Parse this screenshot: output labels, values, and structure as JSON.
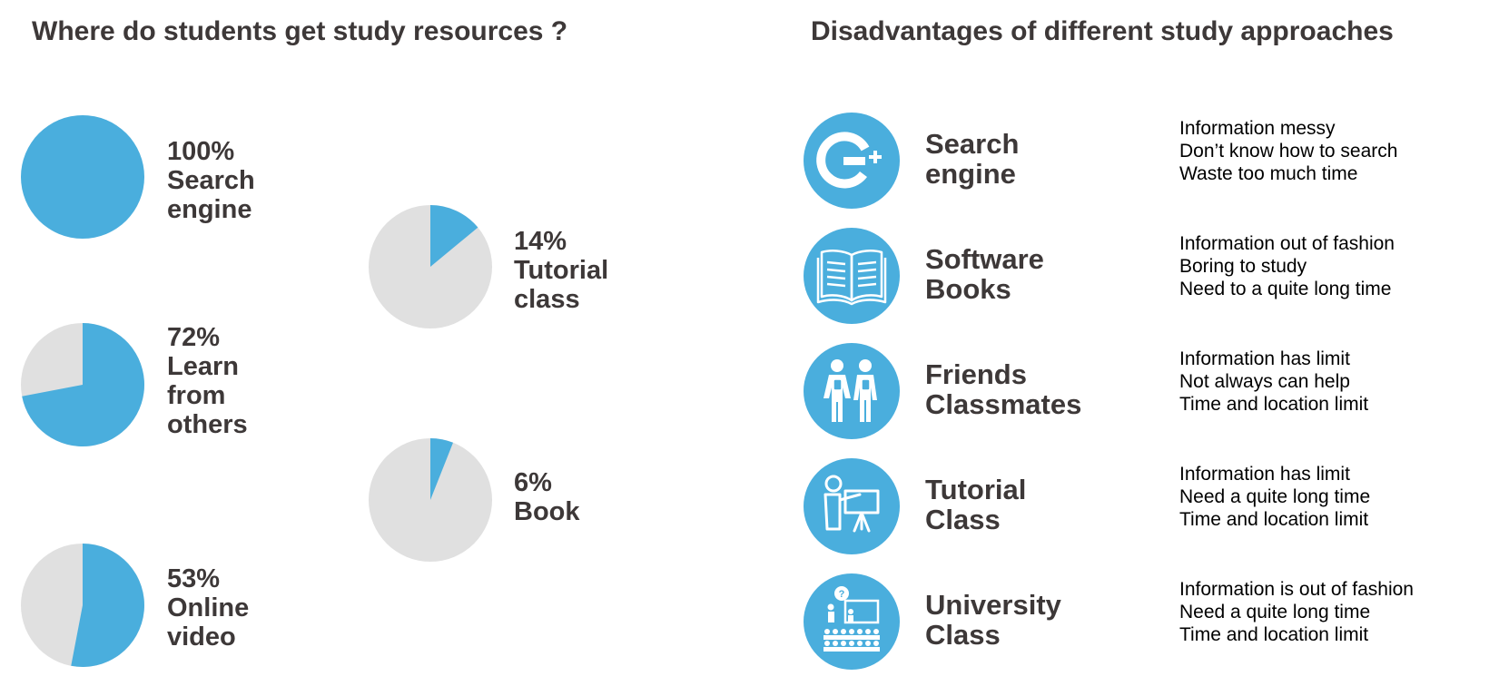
{
  "left_title": "Where do students get study resources ?",
  "right_title": "Disadvantages of different study approaches",
  "colors": {
    "accent": "#4aaedd",
    "remainder": "#e0e0e0",
    "text": "#3d3838"
  },
  "chart_data": {
    "type": "pie",
    "title": "Where do students get study resources ?",
    "pies": [
      {
        "percent_label": "100%",
        "label_lines": [
          "Search",
          "engine"
        ],
        "value": 100
      },
      {
        "percent_label": "72%",
        "label_lines": [
          "Learn",
          "from",
          "others"
        ],
        "value": 72
      },
      {
        "percent_label": "53%",
        "label_lines": [
          "Online",
          "video"
        ],
        "value": 53
      },
      {
        "percent_label": "14%",
        "label_lines": [
          "Tutorial",
          "class"
        ],
        "value": 14
      },
      {
        "percent_label": "6%",
        "label_lines": [
          "Book"
        ],
        "value": 6
      }
    ]
  },
  "approaches": [
    {
      "name_lines": [
        "Search",
        "engine"
      ],
      "icon": "google-plus-icon",
      "cons": [
        "Information messy",
        "Don’t know how to search",
        "Waste too much time"
      ]
    },
    {
      "name_lines": [
        "Software",
        "Books"
      ],
      "icon": "open-book-icon",
      "cons": [
        "Information out of fashion",
        "Boring to study",
        "Need to a quite long time"
      ]
    },
    {
      "name_lines": [
        "Friends",
        "Classmates"
      ],
      "icon": "students-icon",
      "cons": [
        "Information has limit",
        "Not always can help",
        "Time and location limit"
      ]
    },
    {
      "name_lines": [
        "Tutorial",
        "Class"
      ],
      "icon": "teacher-board-icon",
      "cons": [
        "Information has limit",
        "Need a quite long time",
        "Time and location limit"
      ]
    },
    {
      "name_lines": [
        "University",
        "Class"
      ],
      "icon": "lecture-hall-icon",
      "cons": [
        "Information is out of fashion",
        "Need a quite long time",
        "Time and location limit"
      ]
    }
  ]
}
